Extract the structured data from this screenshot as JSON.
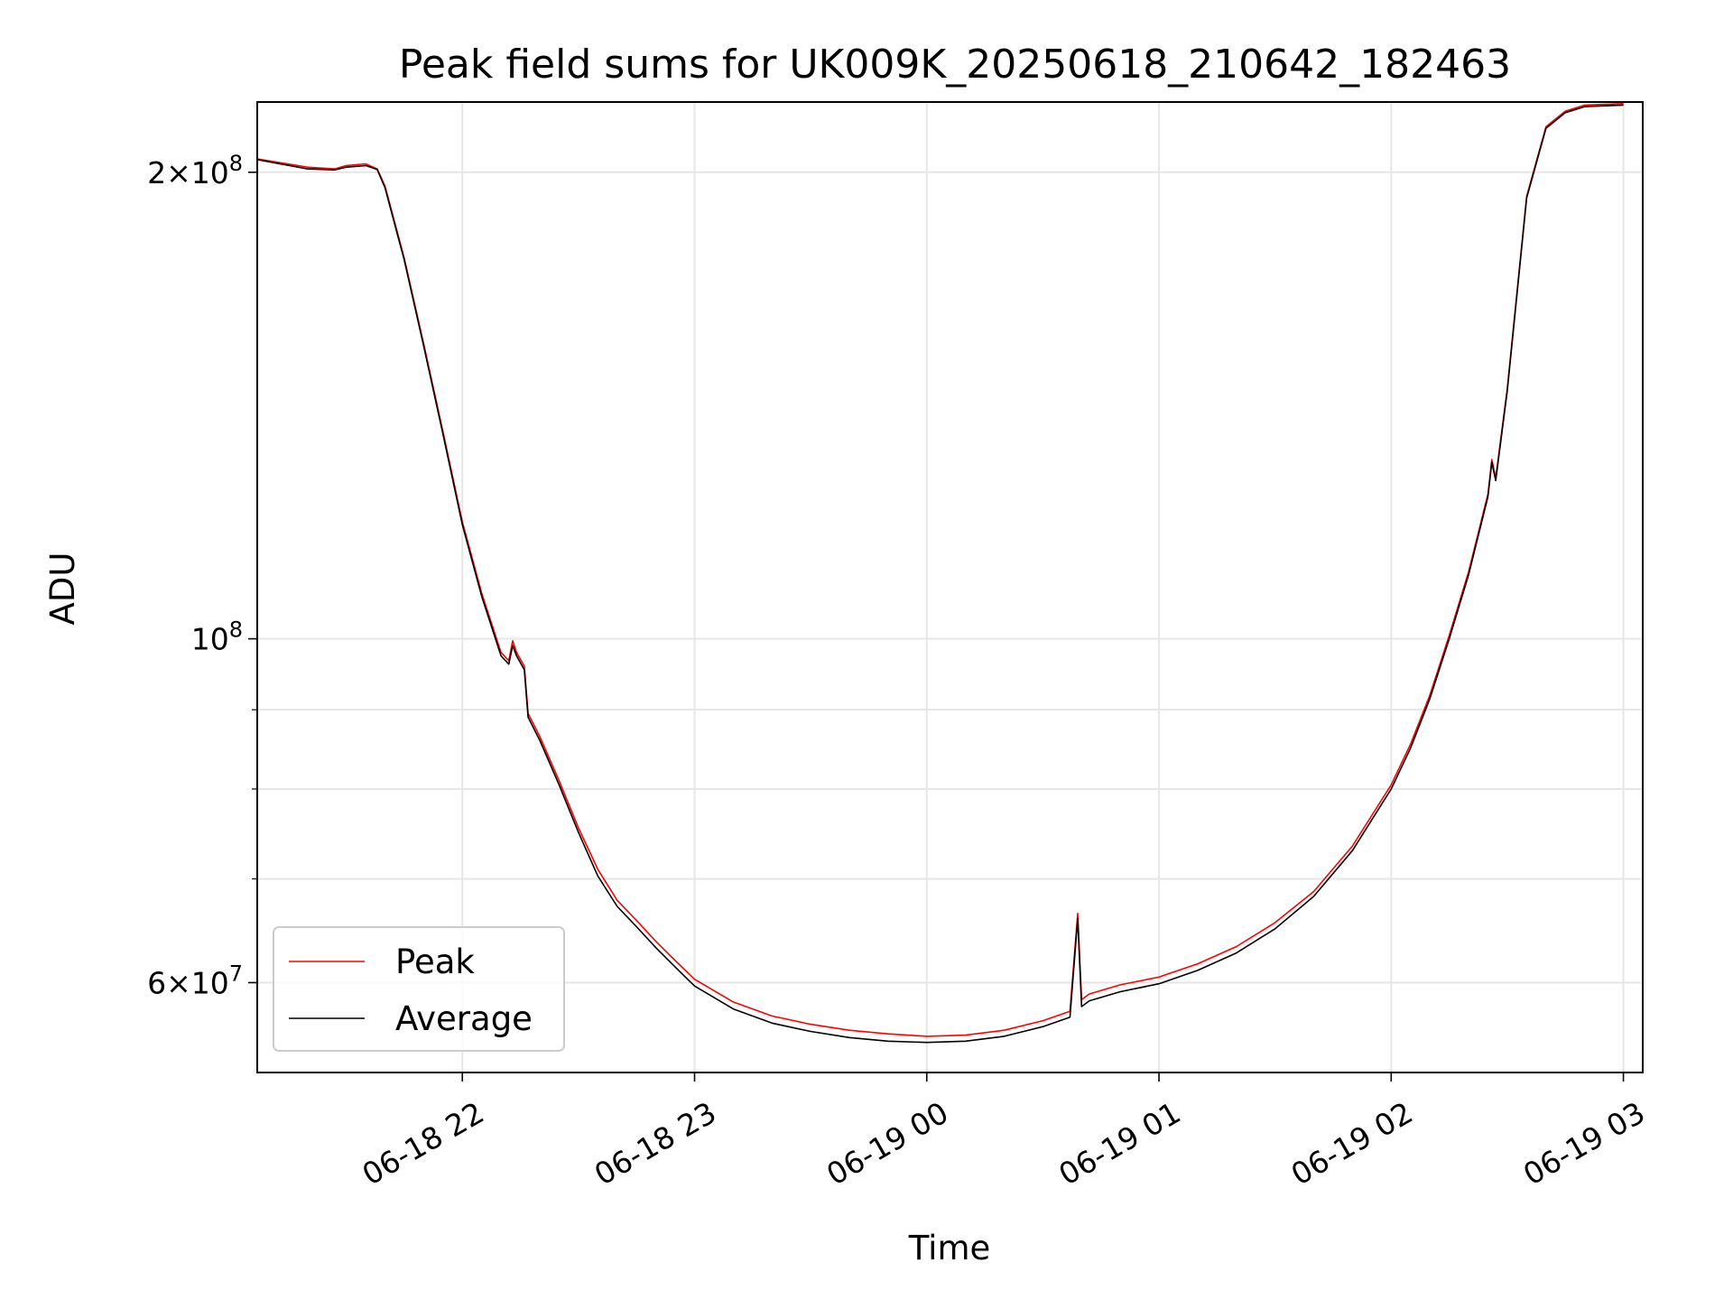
{
  "chart_data": {
    "type": "line",
    "title": "Peak field sums for UK009K_20250618_210642_182463",
    "xlabel": "Time",
    "ylabel": "ADU",
    "yscale": "log",
    "xlim": [
      "2025-06-18 21:07",
      "2025-06-19 03:05"
    ],
    "ylim": [
      52500000,
      222000000
    ],
    "grid": true,
    "legend_position": "lower-left",
    "x_ticks": [
      {
        "value": "2025-06-18 22:00",
        "label": "06-18 22"
      },
      {
        "value": "2025-06-18 23:00",
        "label": "06-18 23"
      },
      {
        "value": "2025-06-19 00:00",
        "label": "06-19 00"
      },
      {
        "value": "2025-06-19 01:00",
        "label": "06-19 01"
      },
      {
        "value": "2025-06-19 02:00",
        "label": "06-19 02"
      },
      {
        "value": "2025-06-19 03:00",
        "label": "06-19 03"
      }
    ],
    "y_major_ticks": [
      {
        "value": 60000000,
        "mantissa": "6",
        "base": "10",
        "exp": "7"
      },
      {
        "value": 100000000,
        "mantissa": "",
        "base": "10",
        "exp": "8"
      },
      {
        "value": 200000000,
        "mantissa": "2",
        "base": "10",
        "exp": "8"
      }
    ],
    "y_minor_ticks": [
      70000000,
      80000000,
      90000000
    ],
    "series": [
      {
        "name": "Peak",
        "color": "#ff0000",
        "x": [
          "2025-06-18 21:07",
          "2025-06-18 21:20",
          "2025-06-18 21:27",
          "2025-06-18 21:30",
          "2025-06-18 21:35",
          "2025-06-18 21:38",
          "2025-06-18 21:40",
          "2025-06-18 21:45",
          "2025-06-18 21:50",
          "2025-06-18 21:55",
          "2025-06-18 22:00",
          "2025-06-18 22:05",
          "2025-06-18 22:10",
          "2025-06-18 22:12",
          "2025-06-18 22:13",
          "2025-06-18 22:14",
          "2025-06-18 22:16",
          "2025-06-18 22:17",
          "2025-06-18 22:20",
          "2025-06-18 22:25",
          "2025-06-18 22:30",
          "2025-06-18 22:35",
          "2025-06-18 22:40",
          "2025-06-18 22:45",
          "2025-06-18 22:50",
          "2025-06-18 22:55",
          "2025-06-18 23:00",
          "2025-06-18 23:10",
          "2025-06-18 23:20",
          "2025-06-18 23:30",
          "2025-06-18 23:40",
          "2025-06-18 23:50",
          "2025-06-19 00:00",
          "2025-06-19 00:10",
          "2025-06-19 00:20",
          "2025-06-19 00:30",
          "2025-06-19 00:37",
          "2025-06-19 00:39",
          "2025-06-19 00:40",
          "2025-06-19 00:42",
          "2025-06-19 00:50",
          "2025-06-19 01:00",
          "2025-06-19 01:10",
          "2025-06-19 01:20",
          "2025-06-19 01:30",
          "2025-06-19 01:40",
          "2025-06-19 01:50",
          "2025-06-19 02:00",
          "2025-06-19 02:05",
          "2025-06-19 02:10",
          "2025-06-19 02:15",
          "2025-06-19 02:20",
          "2025-06-19 02:25",
          "2025-06-19 02:26",
          "2025-06-19 02:27",
          "2025-06-19 02:30",
          "2025-06-19 02:35",
          "2025-06-19 02:40",
          "2025-06-19 02:45",
          "2025-06-19 02:50",
          "2025-06-19 03:00"
        ],
        "values": [
          204000000,
          201500000,
          201000000,
          202000000,
          202500000,
          201000000,
          196000000,
          176000000,
          155000000,
          136000000,
          119000000,
          107000000,
          98000000,
          96800000,
          99700000,
          98000000,
          96000000,
          89500000,
          86500000,
          81000000,
          75500000,
          71000000,
          67800000,
          65800000,
          63800000,
          62000000,
          60300000,
          58300000,
          57100000,
          56400000,
          55900000,
          55600000,
          55400000,
          55500000,
          55900000,
          56700000,
          57500000,
          66500000,
          58500000,
          59000000,
          59800000,
          60500000,
          61700000,
          63300000,
          65600000,
          68700000,
          73500000,
          80500000,
          85500000,
          92000000,
          100500000,
          110500000,
          124000000,
          130500000,
          127000000,
          145000000,
          193000000,
          214000000,
          219000000,
          221000000,
          221500000
        ]
      },
      {
        "name": "Average",
        "color": "#000000",
        "x": [
          "2025-06-18 21:07",
          "2025-06-18 21:20",
          "2025-06-18 21:27",
          "2025-06-18 21:30",
          "2025-06-18 21:35",
          "2025-06-18 21:38",
          "2025-06-18 21:40",
          "2025-06-18 21:45",
          "2025-06-18 21:50",
          "2025-06-18 21:55",
          "2025-06-18 22:00",
          "2025-06-18 22:05",
          "2025-06-18 22:10",
          "2025-06-18 22:12",
          "2025-06-18 22:13",
          "2025-06-18 22:14",
          "2025-06-18 22:16",
          "2025-06-18 22:17",
          "2025-06-18 22:20",
          "2025-06-18 22:25",
          "2025-06-18 22:30",
          "2025-06-18 22:35",
          "2025-06-18 22:40",
          "2025-06-18 22:45",
          "2025-06-18 22:50",
          "2025-06-18 22:55",
          "2025-06-18 23:00",
          "2025-06-18 23:10",
          "2025-06-18 23:20",
          "2025-06-18 23:30",
          "2025-06-18 23:40",
          "2025-06-18 23:50",
          "2025-06-19 00:00",
          "2025-06-19 00:10",
          "2025-06-19 00:20",
          "2025-06-19 00:30",
          "2025-06-19 00:37",
          "2025-06-19 00:39",
          "2025-06-19 00:40",
          "2025-06-19 00:42",
          "2025-06-19 00:50",
          "2025-06-19 01:00",
          "2025-06-19 01:10",
          "2025-06-19 01:20",
          "2025-06-19 01:30",
          "2025-06-19 01:40",
          "2025-06-19 01:50",
          "2025-06-19 02:00",
          "2025-06-19 02:05",
          "2025-06-19 02:10",
          "2025-06-19 02:15",
          "2025-06-19 02:20",
          "2025-06-19 02:25",
          "2025-06-19 02:26",
          "2025-06-19 02:27",
          "2025-06-19 02:30",
          "2025-06-19 02:35",
          "2025-06-19 02:40",
          "2025-06-19 02:45",
          "2025-06-19 02:50",
          "2025-06-19 03:00"
        ],
        "values": [
          203800000,
          201000000,
          200700000,
          201500000,
          202000000,
          200800000,
          195500000,
          175500000,
          154500000,
          135500000,
          118500000,
          106500000,
          97500000,
          96300000,
          99000000,
          97500000,
          95500000,
          89000000,
          86000000,
          80500000,
          75000000,
          70300000,
          67200000,
          65200000,
          63200000,
          61400000,
          59700000,
          57700000,
          56500000,
          55800000,
          55300000,
          55000000,
          54900000,
          55000000,
          55400000,
          56200000,
          57000000,
          66000000,
          57900000,
          58400000,
          59200000,
          59900000,
          61100000,
          62700000,
          65000000,
          68200000,
          73000000,
          80000000,
          85000000,
          91500000,
          100000000,
          110000000,
          123500000,
          130000000,
          126500000,
          144500000,
          192500000,
          213500000,
          218500000,
          220500000,
          221000000
        ]
      }
    ]
  }
}
